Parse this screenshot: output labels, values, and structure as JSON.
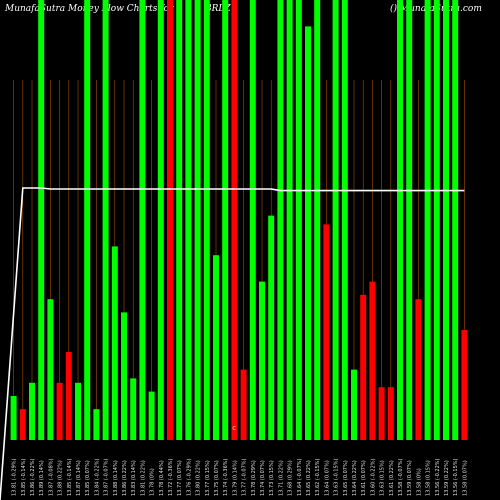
{
  "header": {
    "left": "MunafaSutra  Money Flow  Charts for",
    "symbol": "BRLZ",
    "right": "() MunafaSutra.com"
  },
  "chart_data": {
    "type": "bar",
    "title": "MunafaSutra  Money Flow  Charts for BRLZ",
    "ylim": [
      0,
      100
    ],
    "categories": [
      "13.81 (-0.29%)",
      "13.85 (-0.14%)",
      "13.86 (-0.22%)",
      "13.89 (0.14%)",
      "13.87 (-0.08%)",
      "13.88 (0.22%)",
      "13.85 (-0.14%)",
      "13.87 (0.14%)",
      "13.85 (0.07%)",
      "13.84 (-0.22%)",
      "13.87 (-0.07%)",
      "13.88 (0.14%)",
      "13.86 (0.22%)",
      "13.83 (0.14%)",
      "13.81 (0.22%)",
      "13.78 (0%)",
      "13.78 (0.44%)",
      "13.72 (-0.36%)",
      "13.77 (0.07%)",
      "13.76 (-0.29%)",
      "13.80 (0.22%)",
      "13.77 (0.15%)",
      "13.75 (0.07%)",
      "13.74 (-0.36%)",
      "13.79 (0.14%)",
      "13.77 (-0.07%)",
      "13.78 (0.29%)",
      "13.74 (0.07%)",
      "13.73 (0.15%)",
      "13.71 (0.22%)",
      "13.68 (0.29%)",
      "13.64 (-0.07%)",
      "13.65 (0.22%)",
      "13.62 (-0.15%)",
      "13.64 (0.07%)",
      "13.63 (-0.15%)",
      "13.65 (0.07%)",
      "13.64 (0.22%)",
      "13.61 (0.07%)",
      "13.60 (-0.22%)",
      "13.63 (0.15%)",
      "13.61 (0.22%)",
      "13.58 (-0.07%)",
      "13.59 (0.07%)",
      "13.58 (0%)",
      "13.58 (0.15%)",
      "13.56 (-0.22%)",
      "13.59 (0.22%)",
      "13.56 (-0.15%)",
      "13.58 (0.07%)"
    ],
    "series": [
      {
        "values": [
          10,
          7,
          13,
          100,
          32,
          13,
          20,
          13,
          100,
          7,
          100,
          44,
          29,
          14,
          100,
          11,
          100,
          100,
          100,
          100,
          100,
          100,
          42,
          100,
          100,
          16,
          100,
          36,
          51,
          100,
          100,
          100,
          94,
          100,
          49,
          100,
          100,
          16,
          33,
          36,
          12,
          12,
          100,
          100,
          32,
          100,
          100,
          100,
          100,
          25
        ],
        "colors": [
          "g",
          "r",
          "g",
          "g",
          "g",
          "r",
          "r",
          "g",
          "g",
          "g",
          "g",
          "g",
          "g",
          "g",
          "g",
          "g",
          "g",
          "r",
          "g",
          "g",
          "g",
          "g",
          "g",
          "g",
          "r",
          "r",
          "g",
          "g",
          "g",
          "g",
          "g",
          "g",
          "g",
          "g",
          "r",
          "g",
          "g",
          "g",
          "r",
          "r",
          "r",
          "r",
          "g",
          "g",
          "r",
          "g",
          "g",
          "g",
          "g",
          "r"
        ]
      }
    ],
    "line": {
      "values": [
        0,
        60,
        60,
        60,
        59.8,
        59.8,
        59.8,
        59.8,
        59.8,
        59.8,
        59.8,
        59.8,
        59.8,
        59.8,
        59.8,
        59.8,
        59.8,
        59.8,
        59.8,
        59.8,
        59.8,
        59.8,
        59.8,
        59.8,
        59.8,
        59.8,
        59.8,
        59.8,
        59.8,
        59.5,
        59.5,
        59.5,
        59.5,
        59.5,
        59.5,
        59.5,
        59.5,
        59.5,
        59.5,
        59.5,
        59.5,
        59.5,
        59.5,
        59.5,
        59.5,
        59.5,
        59.5,
        59.5,
        59.5,
        59.5
      ]
    },
    "mid_marker": "C",
    "colors": {
      "green": "#00ff00",
      "red": "#ff0000",
      "grid": "#a05000",
      "line": "#ffffff",
      "bg": "#000000"
    },
    "grid": true
  }
}
